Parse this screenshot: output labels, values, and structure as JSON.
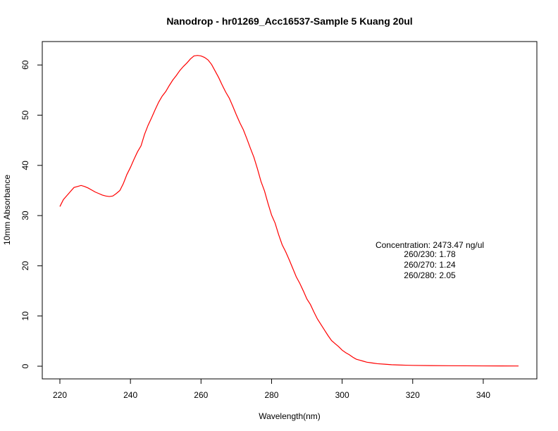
{
  "chart_data": {
    "type": "line",
    "title": "Nanodrop - hr01269_Acc16537-Sample 5 Kuang 20ul",
    "xlabel": "Wavelength(nm)",
    "ylabel": "10mm Absorbance",
    "xlim": [
      220,
      350
    ],
    "ylim": [
      0,
      62
    ],
    "x_ticks": [
      220,
      240,
      260,
      280,
      300,
      320,
      340
    ],
    "y_ticks": [
      0,
      10,
      20,
      30,
      40,
      50,
      60
    ],
    "grid": false,
    "line_color": "#ff0000",
    "series": [
      {
        "x": [
          220,
          221,
          222,
          223,
          224,
          225,
          226,
          227,
          228,
          229,
          230,
          231,
          232,
          233,
          234,
          235,
          236,
          237,
          238,
          239,
          240,
          241,
          242,
          243,
          244,
          245,
          246,
          247,
          248,
          249,
          250,
          251,
          252,
          253,
          254,
          255,
          256,
          257,
          258,
          259,
          260,
          261,
          262,
          263,
          264,
          265,
          266,
          267,
          268,
          269,
          270,
          271,
          272,
          273,
          274,
          275,
          276,
          277,
          278,
          279,
          280,
          281,
          282,
          283,
          284,
          285,
          286,
          287,
          288,
          289,
          290,
          291,
          292,
          293,
          294,
          295,
          296,
          297,
          298,
          299,
          300,
          301,
          302,
          303,
          304,
          305,
          306,
          307,
          308,
          309,
          310,
          312,
          314,
          316,
          318,
          320,
          325,
          330,
          335,
          340,
          345,
          350
        ],
        "y": [
          31.8,
          33.2,
          34.0,
          34.8,
          35.6,
          35.8,
          36.0,
          35.8,
          35.5,
          35.1,
          34.7,
          34.4,
          34.1,
          33.9,
          33.8,
          33.9,
          34.4,
          35.0,
          36.4,
          38.2,
          39.6,
          41.2,
          42.7,
          43.9,
          46.2,
          48.0,
          49.5,
          51.1,
          52.6,
          53.8,
          54.7,
          55.9,
          57.0,
          57.9,
          58.9,
          59.7,
          60.4,
          61.2,
          61.8,
          61.9,
          61.8,
          61.5,
          61.0,
          60.1,
          58.8,
          57.5,
          56.0,
          54.6,
          53.4,
          51.8,
          50.1,
          48.5,
          47.1,
          45.3,
          43.4,
          41.6,
          39.3,
          36.8,
          34.9,
          32.4,
          30.1,
          28.5,
          26.2,
          24.2,
          22.8,
          21.2,
          19.5,
          17.8,
          16.5,
          15.0,
          13.4,
          12.3,
          10.8,
          9.4,
          8.3,
          7.2,
          6.1,
          5.1,
          4.5,
          3.9,
          3.2,
          2.7,
          2.3,
          1.8,
          1.4,
          1.2,
          1.0,
          0.8,
          0.7,
          0.6,
          0.5,
          0.4,
          0.3,
          0.25,
          0.2,
          0.17,
          0.12,
          0.1,
          0.08,
          0.06,
          0.05,
          0.04
        ]
      }
    ],
    "annotations": [
      "Concentration: 2473.47 ng/ul",
      "260/230: 1.78",
      "260/270: 1.24",
      "260/280: 2.05"
    ]
  }
}
